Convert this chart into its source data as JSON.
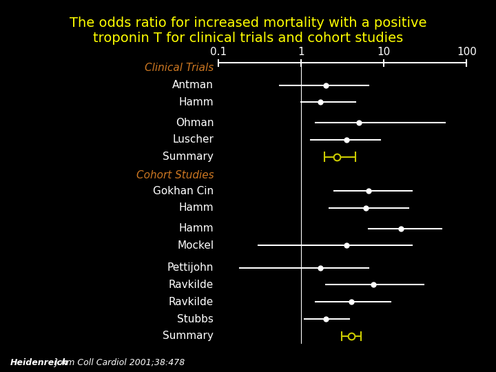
{
  "title": "The odds ratio for increased mortality with a positive\ntroponin T for clinical trials and cohort studies",
  "title_color": "#ffff00",
  "background_color": "#000000",
  "text_color": "#ffffff",
  "citation": "Heidenreich J Am Coll Cardiol 2001;38:478",
  "clinical_trials_label": "Clinical Trials",
  "cohort_studies_label": "Cohort Studies",
  "section_label_color": "#cc7722",
  "axis_ticks": [
    0.1,
    1,
    10,
    100
  ],
  "axis_tick_labels": [
    "0.1",
    "1",
    "10",
    "100"
  ],
  "xlim_lo": 0.07,
  "xlim_hi": 150,
  "reference_line_x": 1.0,
  "studies": [
    {
      "name": "Antman",
      "or": 2.0,
      "lo": 0.55,
      "hi": 6.5,
      "summary": false,
      "section": "clinical"
    },
    {
      "name": "Hamm",
      "or": 1.7,
      "lo": 1.0,
      "hi": 4.5,
      "summary": false,
      "section": "clinical"
    },
    {
      "name": "Ohman",
      "or": 5.0,
      "lo": 1.5,
      "hi": 55.0,
      "summary": false,
      "section": "clinical"
    },
    {
      "name": "Luscher",
      "or": 3.5,
      "lo": 1.3,
      "hi": 9.0,
      "summary": false,
      "section": "clinical"
    },
    {
      "name": "Summary",
      "or": 2.7,
      "lo": 1.9,
      "hi": 4.5,
      "summary": true,
      "section": "clinical"
    },
    {
      "name": "Gokhan Cin",
      "or": 6.5,
      "lo": 2.5,
      "hi": 22.0,
      "summary": false,
      "section": "cohort"
    },
    {
      "name": "Hamm",
      "or": 6.0,
      "lo": 2.2,
      "hi": 20.0,
      "summary": false,
      "section": "cohort"
    },
    {
      "name": "Hamm",
      "or": 16.0,
      "lo": 6.5,
      "hi": 50.0,
      "summary": false,
      "section": "cohort"
    },
    {
      "name": "Mockel",
      "or": 3.5,
      "lo": 0.3,
      "hi": 22.0,
      "summary": false,
      "section": "cohort"
    },
    {
      "name": "Pettijohn",
      "or": 1.7,
      "lo": 0.18,
      "hi": 6.5,
      "summary": false,
      "section": "cohort"
    },
    {
      "name": "Ravkilde",
      "or": 7.5,
      "lo": 2.0,
      "hi": 30.0,
      "summary": false,
      "section": "cohort"
    },
    {
      "name": "Ravkilde",
      "or": 4.0,
      "lo": 1.5,
      "hi": 12.0,
      "summary": false,
      "section": "cohort"
    },
    {
      "name": "Stubbs",
      "or": 2.0,
      "lo": 1.1,
      "hi": 3.8,
      "summary": false,
      "section": "cohort"
    },
    {
      "name": "Summary",
      "or": 4.0,
      "lo": 3.1,
      "hi": 5.3,
      "summary": true,
      "section": "cohort"
    }
  ],
  "summary_color": "#cccc00",
  "ci_color": "#ffffff",
  "dot_color": "#ffffff",
  "title_fontsize": 14,
  "label_fontsize": 11,
  "tick_fontsize": 11,
  "section_fontsize": 11,
  "citation_fontsize": 9
}
